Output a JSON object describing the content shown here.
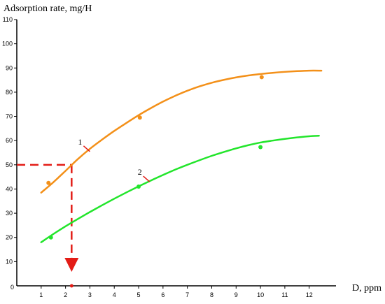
{
  "chart_data": {
    "type": "line",
    "ylabel": "Adsorption rate, mg/H",
    "xlabel": "D, ppm",
    "origin_label": "0",
    "xlim": [
      0,
      13.1
    ],
    "ylim": [
      0,
      110
    ],
    "x_ticks": [
      1,
      2,
      3,
      4,
      5,
      6,
      7,
      8,
      9,
      10,
      11,
      12
    ],
    "y_ticks": [
      10,
      20,
      30,
      40,
      50,
      60,
      70,
      80,
      90,
      100,
      110
    ],
    "grid": false,
    "series": [
      {
        "name": "1",
        "color": "#f39019",
        "curve": {
          "x": [
            1,
            1.5,
            2,
            2.5,
            3,
            3.5,
            4,
            4.5,
            5,
            5.5,
            6,
            6.5,
            7,
            7.5,
            8,
            8.5,
            9,
            9.5,
            10,
            10.5,
            11,
            11.5,
            12,
            12.5
          ],
          "y": [
            38.5,
            42.8,
            47.5,
            52.3,
            56.6,
            60.4,
            64.0,
            67.3,
            70.5,
            73.4,
            76.1,
            78.5,
            80.6,
            82.4,
            83.9,
            85.1,
            86.1,
            86.9,
            87.5,
            88.0,
            88.4,
            88.7,
            88.9,
            88.9
          ]
        },
        "points": {
          "x": [
            1.3,
            5.05,
            10.05
          ],
          "y": [
            42.5,
            69.5,
            86.2
          ]
        }
      },
      {
        "name": "2",
        "color": "#22e52b",
        "curve": {
          "x": [
            1,
            1.5,
            2,
            2.5,
            3,
            3.5,
            4,
            4.5,
            5,
            5.5,
            6,
            6.5,
            7,
            7.5,
            8,
            8.5,
            9,
            9.5,
            10,
            10.5,
            11,
            11.5,
            12,
            12.4
          ],
          "y": [
            18.0,
            21.4,
            24.6,
            27.6,
            30.5,
            33.3,
            36.0,
            38.6,
            41.1,
            43.5,
            45.8,
            48.0,
            50.0,
            51.9,
            53.7,
            55.3,
            56.8,
            58.1,
            59.2,
            60.0,
            60.7,
            61.3,
            61.8,
            62.0
          ]
        },
        "points": {
          "x": [
            1.4,
            5.0,
            10.0
          ],
          "y": [
            20.0,
            41.0,
            57.3
          ]
        }
      }
    ],
    "annotations": [
      {
        "text": "1",
        "series": 0,
        "x": 3.0,
        "y": 55.5
      },
      {
        "text": "2",
        "series": 1,
        "x": 5.45,
        "y": 43.0
      }
    ],
    "reference": {
      "x": 2.25,
      "y": 50,
      "color": "#e31c16"
    },
    "axis_color": "#000000"
  }
}
